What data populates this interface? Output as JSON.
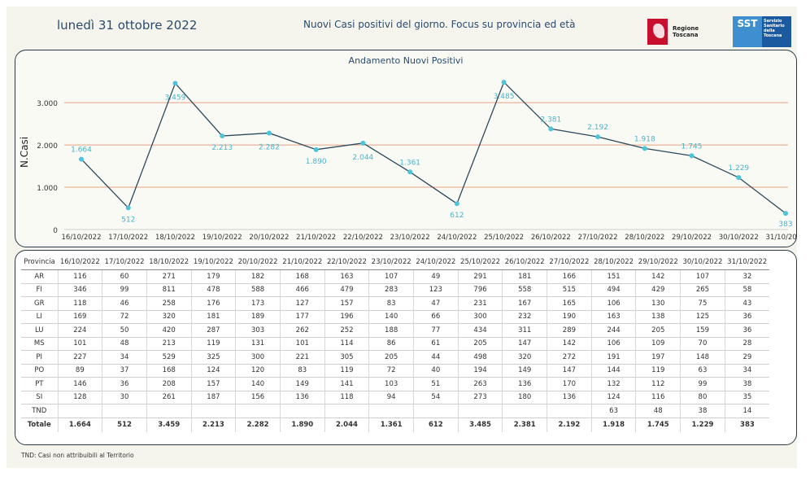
{
  "header": {
    "date": "lunedì 31 ottobre 2022",
    "subtitle": "Nuovi Casi positivi del giorno. Focus su provincia ed età",
    "logo_rt_label": "Regione Toscana",
    "logo_sst_short": "SST",
    "logo_sst_full": "Servizio Sanitario della Toscana"
  },
  "colors": {
    "line": "#2b4a5c",
    "marker": "#4cc4dc",
    "label": "#4ab3c8",
    "grid": "#e8a080",
    "axis_text": "#333333"
  },
  "chart_data": {
    "type": "line",
    "title": "Andamento Nuovi Positivi",
    "ylabel": "N.Casi",
    "xlabel": "",
    "ylim": [
      0,
      3600
    ],
    "yticks": [
      0,
      1000,
      2000,
      3000
    ],
    "ytick_labels": [
      "0",
      "1.000",
      "2.000",
      "3.000"
    ],
    "categories": [
      "16/10/2022",
      "17/10/2022",
      "18/10/2022",
      "19/10/2022",
      "20/10/2022",
      "21/10/2022",
      "22/10/2022",
      "23/10/2022",
      "24/10/2022",
      "25/10/2022",
      "26/10/2022",
      "27/10/2022",
      "28/10/2022",
      "29/10/2022",
      "30/10/2022",
      "31/10/2022"
    ],
    "values": [
      1664,
      512,
      3459,
      2213,
      2282,
      1890,
      2044,
      1361,
      612,
      3485,
      2381,
      2192,
      1918,
      1745,
      1229,
      383
    ],
    "value_labels": [
      "1.664",
      "512",
      "3.459",
      "2.213",
      "2.282",
      "1.890",
      "2.044",
      "1.361",
      "612",
      "3.485",
      "2.381",
      "2.192",
      "1.918",
      "1.745",
      "1.229",
      "383"
    ],
    "grid": true
  },
  "table": {
    "header_first": "Provincia",
    "dates": [
      "16/10/2022",
      "17/10/2022",
      "18/10/2022",
      "19/10/2022",
      "20/10/2022",
      "21/10/2022",
      "22/10/2022",
      "23/10/2022",
      "24/10/2022",
      "25/10/2022",
      "26/10/2022",
      "27/10/2022",
      "28/10/2022",
      "29/10/2022",
      "30/10/2022",
      "31/10/2022"
    ],
    "rows": [
      {
        "prov": "AR",
        "values": [
          "116",
          "60",
          "271",
          "179",
          "182",
          "168",
          "163",
          "107",
          "49",
          "291",
          "181",
          "166",
          "151",
          "142",
          "107",
          "32"
        ]
      },
      {
        "prov": "FI",
        "values": [
          "346",
          "99",
          "811",
          "478",
          "588",
          "466",
          "479",
          "283",
          "123",
          "796",
          "558",
          "515",
          "494",
          "429",
          "265",
          "58"
        ]
      },
      {
        "prov": "GR",
        "values": [
          "118",
          "46",
          "258",
          "176",
          "173",
          "127",
          "157",
          "83",
          "47",
          "231",
          "167",
          "165",
          "106",
          "130",
          "75",
          "43"
        ]
      },
      {
        "prov": "LI",
        "values": [
          "169",
          "72",
          "320",
          "181",
          "189",
          "177",
          "196",
          "140",
          "66",
          "300",
          "232",
          "190",
          "163",
          "138",
          "125",
          "36"
        ]
      },
      {
        "prov": "LU",
        "values": [
          "224",
          "50",
          "420",
          "287",
          "303",
          "262",
          "252",
          "188",
          "77",
          "434",
          "311",
          "289",
          "244",
          "205",
          "159",
          "36"
        ]
      },
      {
        "prov": "MS",
        "values": [
          "101",
          "48",
          "213",
          "119",
          "131",
          "101",
          "114",
          "86",
          "61",
          "205",
          "147",
          "142",
          "106",
          "109",
          "70",
          "28"
        ]
      },
      {
        "prov": "PI",
        "values": [
          "227",
          "34",
          "529",
          "325",
          "300",
          "221",
          "305",
          "205",
          "44",
          "498",
          "320",
          "272",
          "191",
          "197",
          "148",
          "29"
        ]
      },
      {
        "prov": "PO",
        "values": [
          "89",
          "37",
          "168",
          "124",
          "120",
          "83",
          "119",
          "72",
          "40",
          "194",
          "149",
          "147",
          "144",
          "119",
          "63",
          "34"
        ]
      },
      {
        "prov": "PT",
        "values": [
          "146",
          "36",
          "208",
          "157",
          "140",
          "149",
          "141",
          "103",
          "51",
          "263",
          "136",
          "170",
          "132",
          "112",
          "99",
          "38"
        ]
      },
      {
        "prov": "SI",
        "values": [
          "128",
          "30",
          "261",
          "187",
          "156",
          "136",
          "118",
          "94",
          "54",
          "273",
          "180",
          "136",
          "124",
          "116",
          "80",
          "35"
        ]
      },
      {
        "prov": "TND",
        "values": [
          "",
          "",
          "",
          "",
          "",
          "",
          "",
          "",
          "",
          "",
          "",
          "",
          "63",
          "48",
          "38",
          "14"
        ]
      }
    ],
    "total": {
      "prov": "Totale",
      "values": [
        "1.664",
        "512",
        "3.459",
        "2.213",
        "2.282",
        "1.890",
        "2.044",
        "1.361",
        "612",
        "3.485",
        "2.381",
        "2.192",
        "1.918",
        "1.745",
        "1.229",
        "383"
      ]
    }
  },
  "footnote": "TND:  Casi non attribuibili al Territorio"
}
